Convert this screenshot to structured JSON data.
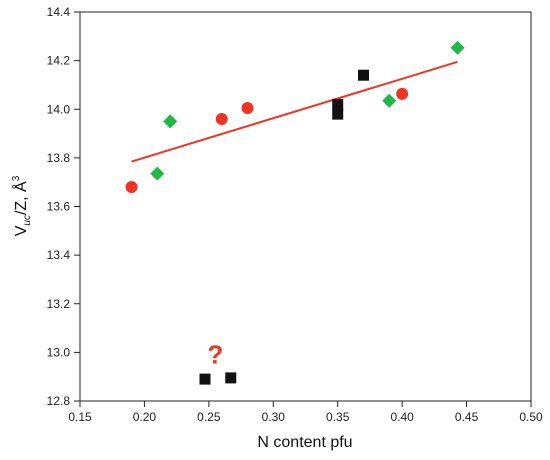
{
  "chart_data": {
    "type": "scatter",
    "xlabel": "N content pfu",
    "ylabel_main": "V",
    "ylabel_sub": "uc",
    "ylabel_rest": "/Z, Å",
    "ylabel_sup": "3",
    "xlim": [
      0.15,
      0.5
    ],
    "ylim": [
      12.8,
      14.4
    ],
    "x_ticks": [
      "0.15",
      "0.20",
      "0.25",
      "0.30",
      "0.35",
      "0.40",
      "0.45",
      "0.50"
    ],
    "y_ticks": [
      "12.8",
      "13.0",
      "13.2",
      "13.4",
      "13.6",
      "13.8",
      "14.0",
      "14.2",
      "14.4"
    ],
    "grid": false,
    "legend": "none",
    "series": [
      {
        "marker": "circle",
        "color": "#ee3524",
        "points": [
          [
            0.19,
            13.68
          ],
          [
            0.26,
            13.96
          ],
          [
            0.28,
            14.005
          ],
          [
            0.4,
            14.063
          ]
        ]
      },
      {
        "marker": "diamond",
        "color": "#1db847",
        "points": [
          [
            0.21,
            13.735
          ],
          [
            0.22,
            13.95
          ],
          [
            0.39,
            14.035
          ],
          [
            0.443,
            14.253
          ]
        ]
      },
      {
        "marker": "square",
        "color": "#111111",
        "points": [
          [
            0.35,
            13.98
          ],
          [
            0.35,
            14.02
          ],
          [
            0.37,
            14.14
          ],
          [
            0.247,
            12.89
          ],
          [
            0.267,
            12.895
          ]
        ]
      }
    ],
    "trendline": {
      "color": "#ee3524",
      "x": [
        0.19,
        0.443
      ],
      "y": [
        13.785,
        14.195
      ]
    },
    "annotations": [
      {
        "text": "?",
        "color": "#ee3524",
        "x": 0.255,
        "y": 12.955
      }
    ]
  }
}
